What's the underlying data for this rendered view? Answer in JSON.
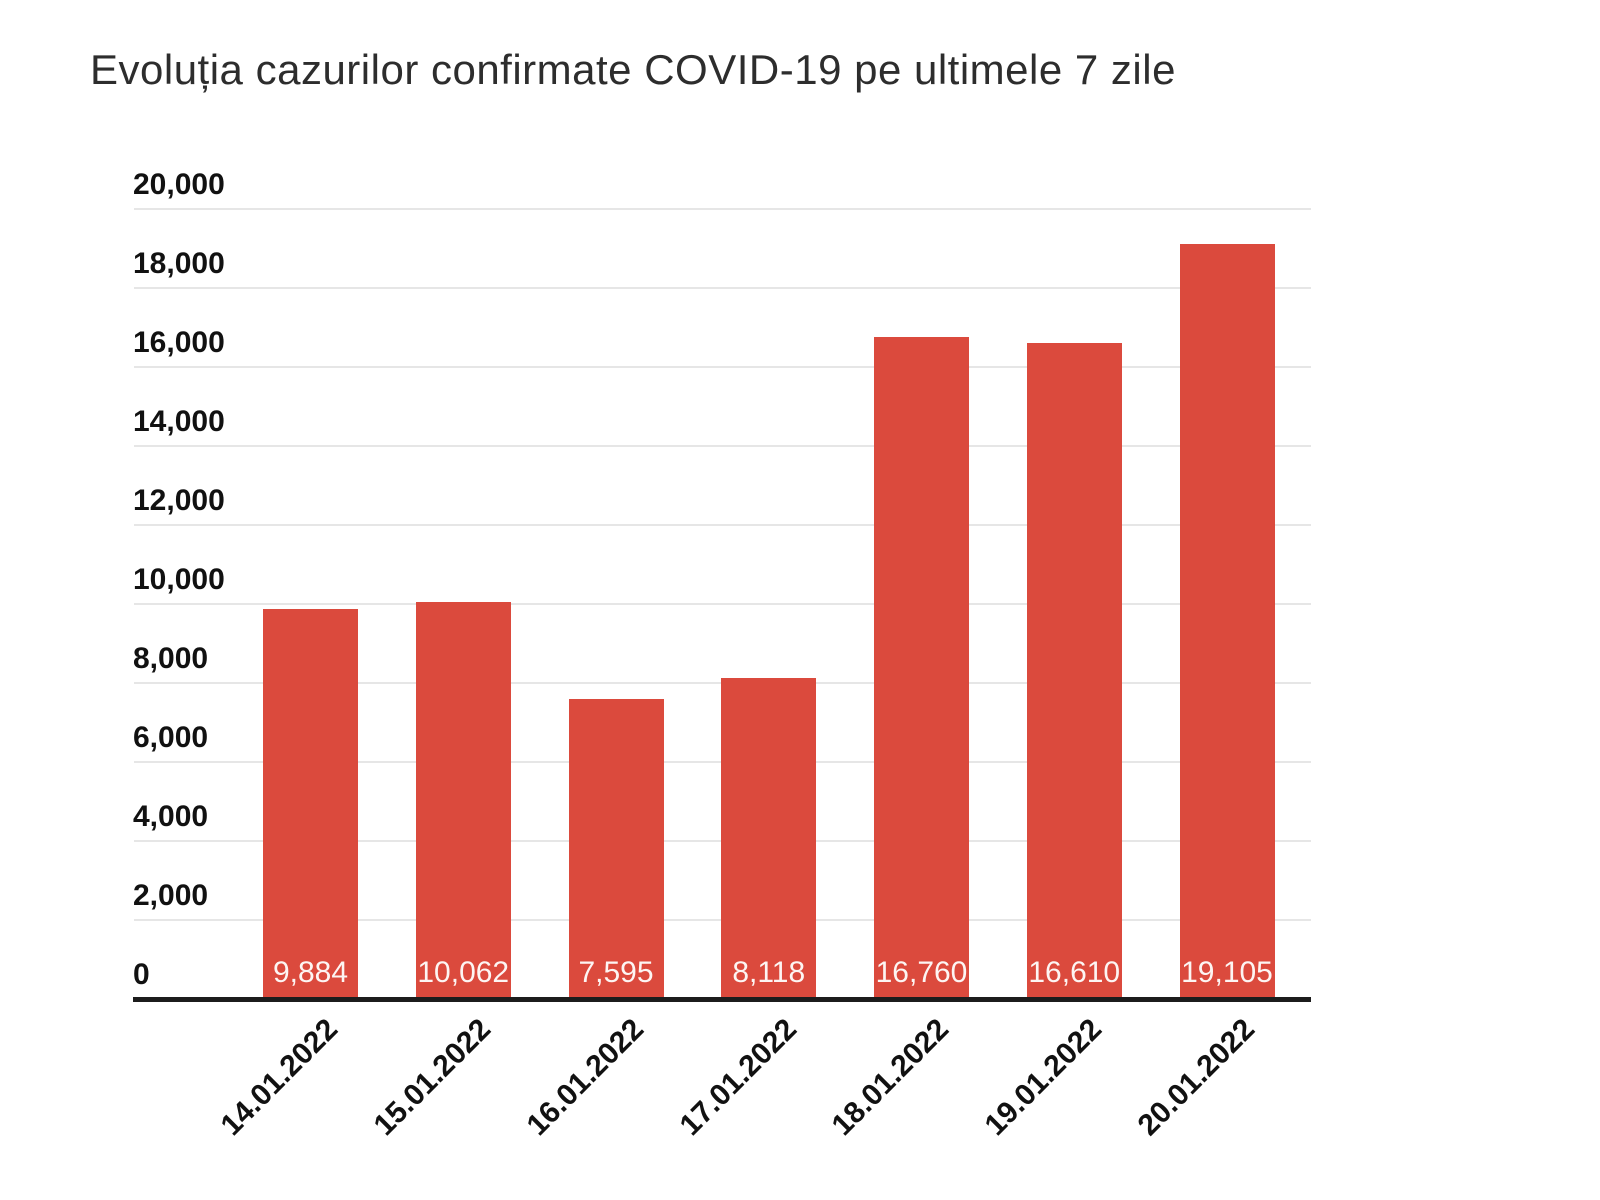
{
  "title": "Evoluția cazurilor confirmate COVID-19 pe ultimele 7 zile",
  "colors": {
    "bg": "#ffffff",
    "bar": "#db4a3d",
    "grid": "#e6e6e6",
    "axis": "#1c1c1c",
    "title": "#2d2d2d",
    "tick": "#111111",
    "value": "#fdf5f3"
  },
  "chart_data": {
    "type": "bar",
    "title": "Evoluția cazurilor confirmate COVID-19 pe ultimele 7 zile",
    "categories": [
      "14.01.2022",
      "15.01.2022",
      "16.01.2022",
      "17.01.2022",
      "18.01.2022",
      "19.01.2022",
      "20.01.2022"
    ],
    "values": [
      9884,
      10062,
      7595,
      8118,
      16760,
      16610,
      19105
    ],
    "value_labels": [
      "9,884",
      "10,062",
      "7,595",
      "8,118",
      "16,760",
      "16,610",
      "19,105"
    ],
    "xlabel": "",
    "ylabel": "",
    "ylim": [
      0,
      20000
    ],
    "ytick_step": 2000,
    "ytick_labels": [
      "0",
      "2,000",
      "4,000",
      "6,000",
      "8,000",
      "10,000",
      "12,000",
      "14,000",
      "16,000",
      "18,000",
      "20,000"
    ],
    "grid": true,
    "legend": "none",
    "bar_color": "#db4a3d",
    "value_label_position": "inside-bottom",
    "x_label_rotation_deg": -45
  }
}
